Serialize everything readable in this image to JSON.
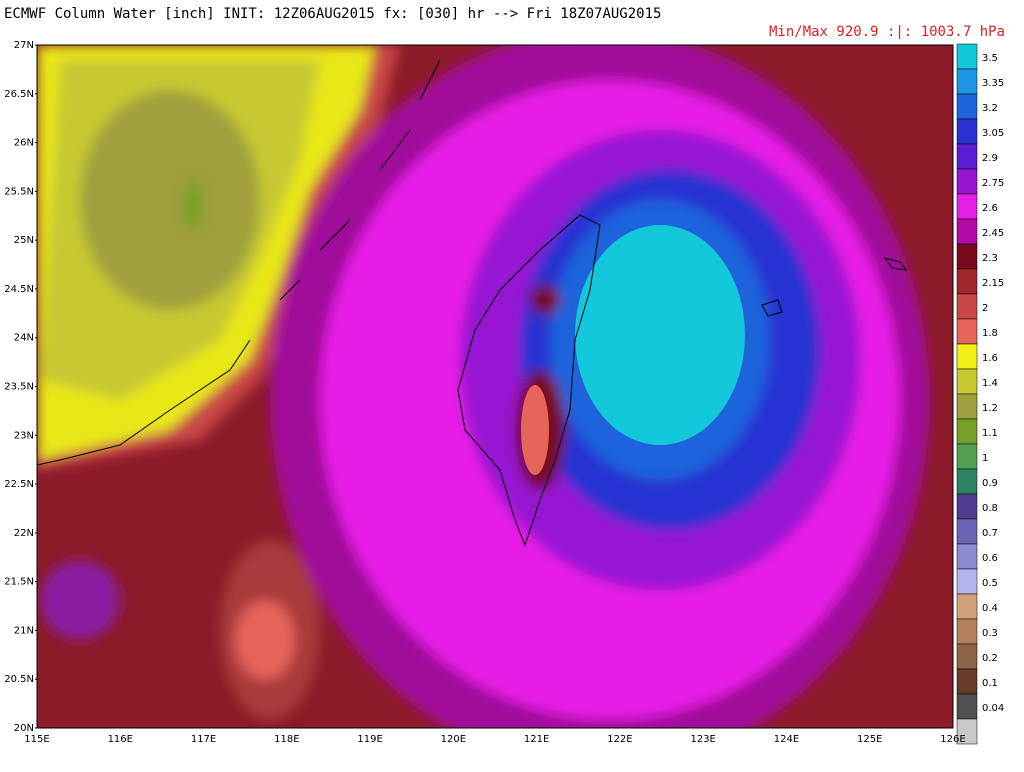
{
  "header": {
    "title": "ECMWF Column Water [inch] INIT: 12Z06AUG2015 fx: [030] hr --> Fri 18Z07AUG2015",
    "subtitle": "Min/Max 920.9 :|: 1003.7 hPa"
  },
  "map": {
    "lat_labels": [
      "27N",
      "26.5N",
      "26N",
      "25.5N",
      "25N",
      "24.5N",
      "24N",
      "23.5N",
      "23N",
      "22.5N",
      "22N",
      "21.5N",
      "21N",
      "20.5N",
      "20N"
    ],
    "lon_labels": [
      "115E",
      "116E",
      "117E",
      "118E",
      "119E",
      "120E",
      "121E",
      "122E",
      "123E",
      "124E",
      "125E",
      "126E"
    ]
  },
  "colorbar": {
    "levels": [
      3.5,
      3.35,
      3.2,
      3.05,
      2.9,
      2.75,
      2.6,
      2.45,
      2.3,
      2.15,
      2,
      1.8,
      1.6,
      1.4,
      1.2,
      1.1,
      1,
      0.9,
      0.8,
      0.7,
      0.6,
      0.5,
      0.4,
      0.3,
      0.2,
      0.1,
      0.04
    ],
    "colors": [
      "#14c8dc",
      "#1e96e6",
      "#1e64dc",
      "#2832d2",
      "#5a1ed2",
      "#9614d2",
      "#e61ee6",
      "#b40aaa",
      "#780a1e",
      "#a02828",
      "#c84646",
      "#e6645a",
      "#f0f014",
      "#c8c832",
      "#a0a03c",
      "#78a028",
      "#50a050",
      "#288264",
      "#503c8c",
      "#6e64b4",
      "#8c8cd2",
      "#b4b4f0",
      "#d2a078",
      "#b4825a",
      "#8c6446",
      "#643c28",
      "#505050",
      "#c8c8c8"
    ]
  }
}
